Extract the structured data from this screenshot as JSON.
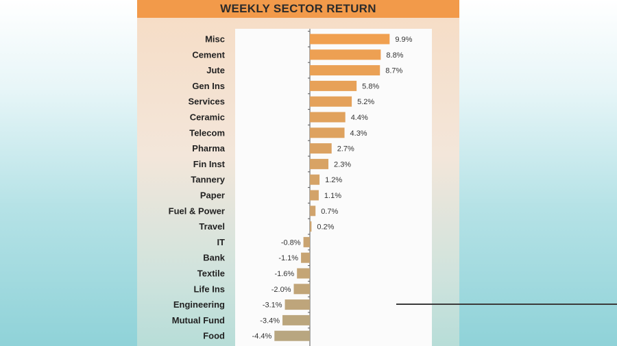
{
  "chart_data": {
    "type": "bar",
    "orientation": "horizontal",
    "title": "WEEKLY SECTOR RETURN",
    "categories": [
      "Misc",
      "Cement",
      "Jute",
      "Gen Ins",
      "Services",
      "Ceramic",
      "Telecom",
      "Pharma",
      "Fin Inst",
      "Tannery",
      "Paper",
      "Fuel & Power",
      "Travel",
      "IT",
      "Bank",
      "Textile",
      "Life Ins",
      "Engineering",
      "Mutual Fund",
      "Food"
    ],
    "values": [
      9.9,
      8.8,
      8.7,
      5.8,
      5.2,
      4.4,
      4.3,
      2.7,
      2.3,
      1.2,
      1.1,
      0.7,
      0.2,
      -0.8,
      -1.1,
      -1.6,
      -2.0,
      -3.1,
      -3.4,
      -4.4
    ],
    "value_labels": [
      "9.9%",
      "8.8%",
      "8.7%",
      "5.8%",
      "5.2%",
      "4.4%",
      "4.3%",
      "2.7%",
      "2.3%",
      "1.2%",
      "1.1%",
      "0.7%",
      "0.2%",
      "-0.8%",
      "-1.1%",
      "-1.6%",
      "-2.0%",
      "-3.1%",
      "-3.4%",
      "-4.4%"
    ],
    "xlim": [
      -5,
      12
    ],
    "grid": false,
    "legend": "none",
    "colors": {
      "title_bar": "#f29a4a",
      "bar_top": "#f0a050",
      "bar_bottom": "#b8a680"
    }
  }
}
